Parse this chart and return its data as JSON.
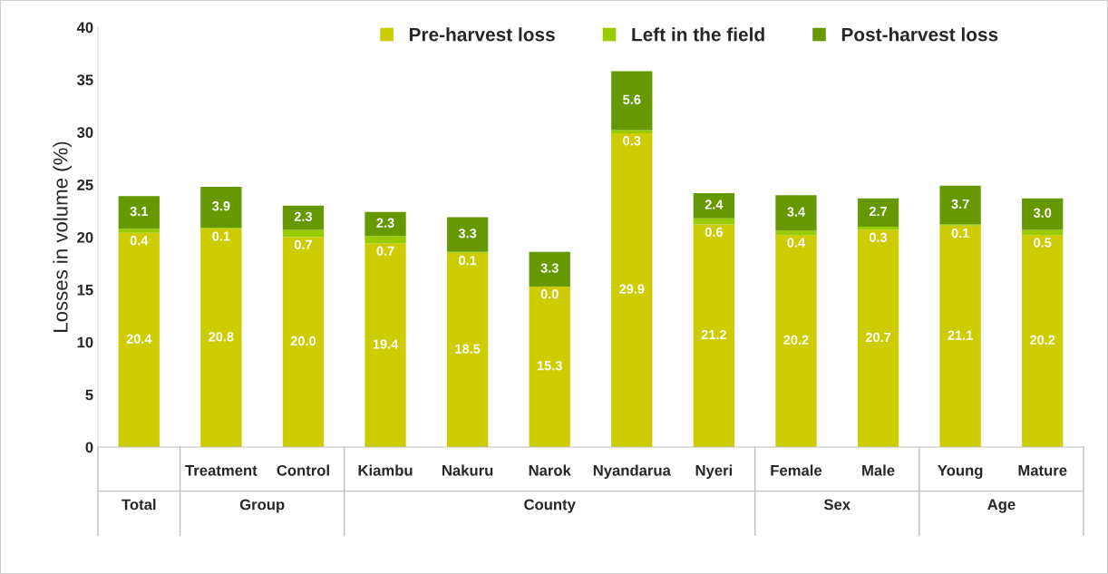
{
  "chart_data": {
    "type": "bar",
    "stacked": true,
    "ylabel": "Losses in volume (%)",
    "categories": [
      null,
      "Treatment",
      "Control",
      "Kiambu",
      "Nakuru",
      "Narok",
      "Nyandarua",
      "Nyeri",
      "Female",
      "Male",
      "Young",
      "Mature"
    ],
    "series": [
      {
        "name": "Pre-harvest loss",
        "color": "#cccc00",
        "values": [
          20.4,
          20.8,
          20.0,
          19.4,
          18.5,
          15.3,
          29.9,
          21.2,
          20.2,
          20.7,
          21.1,
          20.2
        ],
        "value_labels": [
          "20.4",
          "20.8",
          "20.0",
          "19.4",
          "18.5",
          "15.3",
          "29.9",
          "21.2",
          "20.2",
          "20.7",
          "21.1",
          "20.2"
        ]
      },
      {
        "name": "Left in the field",
        "color": "#99cc00",
        "values": [
          0.4,
          0.1,
          0.7,
          0.7,
          0.1,
          0.0,
          0.3,
          0.6,
          0.4,
          0.3,
          0.1,
          0.5
        ],
        "value_labels": [
          "0.4",
          "0.1",
          "0.7",
          "0.7",
          "0.1",
          "0.0",
          "0.3",
          "0.6",
          "0.4",
          "0.3",
          "0.1",
          "0.5"
        ]
      },
      {
        "name": "Post-harvest loss",
        "color": "#669900",
        "values": [
          3.1,
          3.9,
          2.3,
          2.3,
          3.3,
          3.3,
          5.6,
          2.4,
          3.4,
          2.7,
          3.7,
          3.0
        ],
        "value_labels": [
          "3.1",
          "3.9",
          "2.3",
          "2.3",
          "3.3",
          "3.3",
          "5.6",
          "2.4",
          "3.4",
          "2.7",
          "3.7",
          "3.0"
        ]
      }
    ],
    "annotations": [
      "Total",
      "Group",
      "County",
      "Sex",
      "Age"
    ],
    "ylim": [
      0,
      40
    ],
    "yticks": [
      0,
      5,
      10,
      15,
      20,
      25,
      30,
      35,
      40
    ],
    "legend": "top",
    "grid": false
  }
}
